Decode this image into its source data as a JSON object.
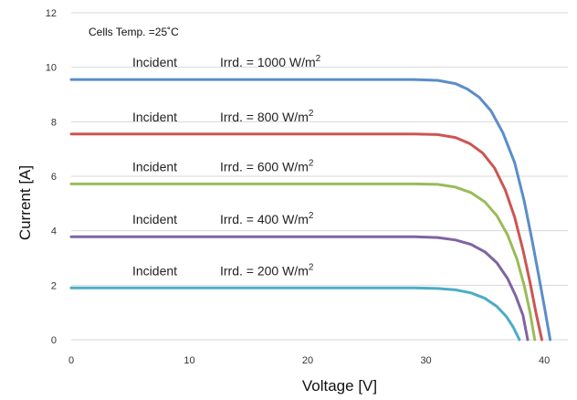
{
  "chart_data": {
    "type": "line",
    "title": "",
    "xlabel": "Voltage [V]",
    "ylabel": "Current [A]",
    "xlim": [
      0,
      42
    ],
    "ylim": [
      0,
      12
    ],
    "xticks": [
      0,
      10,
      20,
      30,
      40
    ],
    "yticks": [
      0,
      2,
      4,
      6,
      8,
      10,
      12
    ],
    "grid": "horizontal",
    "annotation": "Cells Temp. =25˚C",
    "series": [
      {
        "label_prefix": "Incident",
        "label_main": "Irrd. = 1000 W/m",
        "label_sup": "2",
        "color": "#5B8DC9",
        "points": [
          [
            0,
            9.55
          ],
          [
            5,
            9.55
          ],
          [
            10,
            9.55
          ],
          [
            15,
            9.55
          ],
          [
            20,
            9.55
          ],
          [
            25,
            9.55
          ],
          [
            29,
            9.55
          ],
          [
            31,
            9.52
          ],
          [
            32.5,
            9.4
          ],
          [
            33.5,
            9.2
          ],
          [
            34.5,
            8.9
          ],
          [
            35.5,
            8.4
          ],
          [
            36.5,
            7.6
          ],
          [
            37.5,
            6.5
          ],
          [
            38.3,
            5.1
          ],
          [
            39,
            3.6
          ],
          [
            39.6,
            2.2
          ],
          [
            40.1,
            1.0
          ],
          [
            40.5,
            0
          ]
        ]
      },
      {
        "label_prefix": "Incident",
        "label_main": "Irrd. = 800  W/m",
        "label_sup": "2",
        "color": "#CC5652",
        "points": [
          [
            0,
            7.55
          ],
          [
            5,
            7.55
          ],
          [
            10,
            7.55
          ],
          [
            15,
            7.55
          ],
          [
            20,
            7.55
          ],
          [
            25,
            7.55
          ],
          [
            29,
            7.55
          ],
          [
            31,
            7.53
          ],
          [
            32.5,
            7.42
          ],
          [
            33.7,
            7.2
          ],
          [
            34.8,
            6.85
          ],
          [
            35.8,
            6.3
          ],
          [
            36.7,
            5.5
          ],
          [
            37.5,
            4.5
          ],
          [
            38.2,
            3.3
          ],
          [
            38.8,
            2.1
          ],
          [
            39.3,
            1.0
          ],
          [
            39.8,
            0
          ]
        ]
      },
      {
        "label_prefix": "Incident",
        "label_main": "Irrd. = 600  W/m",
        "label_sup": "2",
        "color": "#9BBB59",
        "points": [
          [
            0,
            5.72
          ],
          [
            5,
            5.72
          ],
          [
            10,
            5.72
          ],
          [
            15,
            5.72
          ],
          [
            20,
            5.72
          ],
          [
            25,
            5.72
          ],
          [
            29,
            5.72
          ],
          [
            31,
            5.7
          ],
          [
            32.5,
            5.6
          ],
          [
            33.8,
            5.4
          ],
          [
            35,
            5.05
          ],
          [
            36,
            4.55
          ],
          [
            36.9,
            3.85
          ],
          [
            37.7,
            2.95
          ],
          [
            38.3,
            2.0
          ],
          [
            38.8,
            1.0
          ],
          [
            39.2,
            0
          ]
        ]
      },
      {
        "label_prefix": "Incident",
        "label_main": "Irrd. = 400  W/m",
        "label_sup": "2",
        "color": "#8064A2",
        "points": [
          [
            0,
            3.78
          ],
          [
            5,
            3.78
          ],
          [
            10,
            3.78
          ],
          [
            15,
            3.78
          ],
          [
            20,
            3.78
          ],
          [
            25,
            3.78
          ],
          [
            29,
            3.78
          ],
          [
            31,
            3.75
          ],
          [
            32.5,
            3.66
          ],
          [
            33.8,
            3.5
          ],
          [
            35,
            3.22
          ],
          [
            36,
            2.82
          ],
          [
            36.9,
            2.25
          ],
          [
            37.6,
            1.6
          ],
          [
            38.2,
            0.9
          ],
          [
            38.6,
            0
          ]
        ]
      },
      {
        "label_prefix": "Incident",
        "label_main": "Irrd. = 200  W/m",
        "label_sup": "2",
        "color": "#4BACC6",
        "points": [
          [
            0,
            1.9
          ],
          [
            5,
            1.9
          ],
          [
            10,
            1.9
          ],
          [
            15,
            1.9
          ],
          [
            20,
            1.9
          ],
          [
            25,
            1.9
          ],
          [
            29,
            1.9
          ],
          [
            31,
            1.88
          ],
          [
            32.5,
            1.83
          ],
          [
            33.8,
            1.72
          ],
          [
            35,
            1.52
          ],
          [
            36,
            1.22
          ],
          [
            36.8,
            0.85
          ],
          [
            37.4,
            0.45
          ],
          [
            37.9,
            0
          ]
        ]
      }
    ]
  }
}
